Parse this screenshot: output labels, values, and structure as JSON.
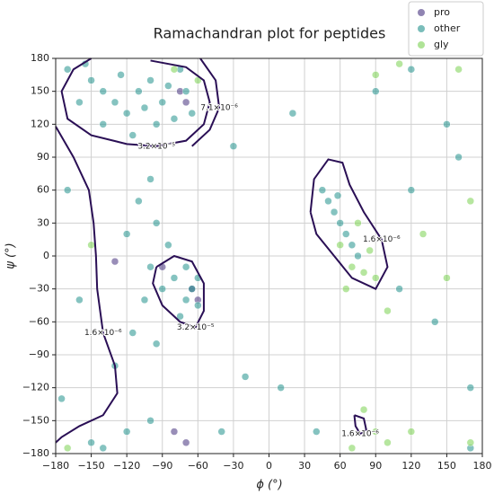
{
  "chart_data": {
    "type": "scatter",
    "title": "Ramachandran plot for peptides",
    "x_label": "ϕ (°)",
    "y_label": "ψ (°)",
    "xlim": [
      -180,
      180
    ],
    "ylim": [
      -180,
      180
    ],
    "xticks": [
      {
        "value": -180,
        "label": "−180"
      },
      {
        "value": -150,
        "label": "−150"
      },
      {
        "value": -120,
        "label": "−120"
      },
      {
        "value": -90,
        "label": "−90"
      },
      {
        "value": -60,
        "label": "−60"
      },
      {
        "value": -30,
        "label": "−30"
      },
      0,
      30,
      60,
      90,
      120,
      150,
      180
    ],
    "yticks": [
      {
        "value": -180,
        "label": "−180"
      },
      {
        "value": -150,
        "label": "−150"
      },
      {
        "value": -120,
        "label": "−120"
      },
      {
        "value": -90,
        "label": "−90"
      },
      {
        "value": -60,
        "label": "−60"
      },
      {
        "value": -30,
        "label": "−30"
      },
      0,
      30,
      60,
      90,
      120,
      150,
      180
    ],
    "grid": true,
    "legend": "upper right",
    "series": [
      {
        "name": "pro",
        "color": "#46327e",
        "x": [
          -70,
          -65,
          -75,
          -60,
          -80,
          -70,
          -90,
          -130
        ],
        "values": [
          140,
          -30,
          150,
          -40,
          -160,
          -170,
          -10,
          -5
        ]
      },
      {
        "name": "other",
        "color": "#21918c",
        "x": [
          -150,
          -140,
          -130,
          -120,
          -110,
          -100,
          -90,
          -80,
          -70,
          -160,
          -170,
          -115,
          -125,
          -95,
          -75,
          -140,
          -105,
          -85,
          -65,
          -155,
          -70,
          -65,
          -80,
          -60,
          -90,
          -75,
          -100,
          -85,
          -95,
          -110,
          -100,
          -120,
          -105,
          -70,
          -60,
          -115,
          -95,
          -130,
          -170,
          -160,
          -175,
          -150,
          -120,
          -100,
          -140,
          -30,
          -20,
          20,
          40,
          90,
          120,
          150,
          170,
          110,
          140,
          160,
          -40,
          10,
          120,
          170,
          50,
          55,
          60,
          45,
          65,
          70,
          58,
          75
        ],
        "values": [
          160,
          150,
          140,
          130,
          150,
          160,
          140,
          125,
          150,
          140,
          170,
          110,
          165,
          120,
          170,
          120,
          135,
          155,
          130,
          175,
          -40,
          -30,
          -20,
          -45,
          -30,
          -55,
          -10,
          10,
          30,
          50,
          70,
          20,
          -40,
          -10,
          -20,
          -70,
          -80,
          -100,
          60,
          -40,
          -130,
          -170,
          -160,
          -150,
          -175,
          100,
          -110,
          130,
          -160,
          150,
          170,
          120,
          -175,
          -30,
          -60,
          90,
          -160,
          -120,
          60,
          -120,
          50,
          40,
          30,
          60,
          20,
          10,
          55,
          0
        ]
      },
      {
        "name": "gly",
        "color": "#7ad151",
        "x": [
          60,
          70,
          80,
          85,
          90,
          75,
          80,
          90,
          100,
          70,
          -80,
          -60,
          -170,
          160,
          170,
          110,
          90,
          120,
          65,
          100,
          150,
          130,
          170,
          -150
        ],
        "values": [
          10,
          -10,
          -15,
          5,
          -20,
          30,
          -140,
          -160,
          -170,
          -175,
          170,
          160,
          -175,
          170,
          -170,
          175,
          165,
          -160,
          -30,
          -50,
          -20,
          20,
          50,
          10
        ]
      }
    ],
    "contours": [
      {
        "label": "1.6×10⁻⁶",
        "x": [
          -180,
          -165,
          -152,
          -148,
          -146,
          -145,
          -140,
          -130,
          -128,
          -140,
          -160,
          -175,
          -180
        ],
        "y": [
          118,
          90,
          60,
          30,
          0,
          -30,
          -70,
          -100,
          -125,
          -145,
          -155,
          -165,
          -170
        ]
      },
      {
        "label": "3.2×10⁻⁵",
        "x": [
          -150,
          -165,
          -175,
          -170,
          -150,
          -120,
          -95,
          -70,
          -55,
          -50,
          -55,
          -70,
          -100
        ],
        "y": [
          180,
          170,
          150,
          125,
          110,
          102,
          100,
          105,
          120,
          140,
          160,
          172,
          178
        ]
      },
      {
        "label": "7.1×10⁻⁶",
        "x": [
          -58,
          -45,
          -42,
          -50,
          -65
        ],
        "y": [
          180,
          160,
          135,
          115,
          100
        ]
      },
      {
        "label": "3.2×10⁻⁵",
        "x": [
          -95,
          -80,
          -65,
          -55,
          -55,
          -62,
          -75,
          -90,
          -98,
          -95
        ],
        "y": [
          -10,
          0,
          -5,
          -25,
          -50,
          -65,
          -60,
          -45,
          -25,
          -10
        ]
      },
      {
        "label": "1.6×10⁻⁶",
        "x": [
          35,
          38,
          50,
          62,
          68,
          80,
          95,
          100,
          90,
          70,
          55,
          40,
          35
        ],
        "y": [
          40,
          70,
          88,
          85,
          65,
          40,
          15,
          -10,
          -30,
          -20,
          0,
          20,
          40
        ]
      },
      {
        "label": "1.6×10⁻⁶",
        "x": [
          72,
          80,
          82,
          77,
          73,
          72
        ],
        "y": [
          -145,
          -148,
          -158,
          -162,
          -155,
          -145
        ]
      }
    ]
  }
}
